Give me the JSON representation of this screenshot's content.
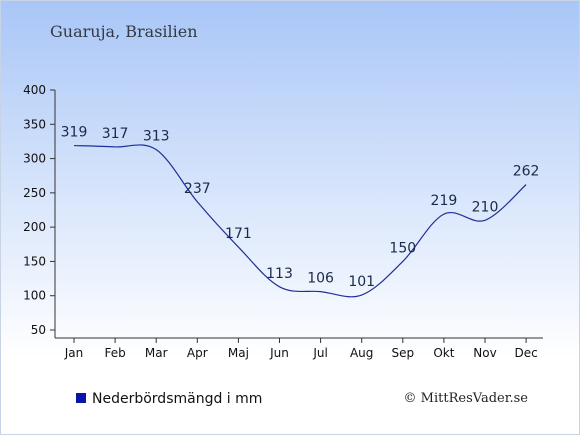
{
  "chart_data": {
    "type": "line",
    "title": "Guaruja, Brasilien",
    "categories": [
      "Jan",
      "Feb",
      "Mar",
      "Apr",
      "Maj",
      "Jun",
      "Jul",
      "Aug",
      "Sep",
      "Okt",
      "Nov",
      "Dec"
    ],
    "series": [
      {
        "name": "Nederbördsmängd i mm",
        "values": [
          319,
          317,
          313,
          237,
          171,
          113,
          106,
          101,
          150,
          219,
          210,
          262
        ]
      }
    ],
    "ylim": [
      50,
      400
    ],
    "yticks": [
      50,
      100,
      150,
      200,
      250,
      300,
      350,
      400
    ],
    "legend_position": "bottom-left",
    "grid": false
  },
  "credit": "© MittResVader.se",
  "colors": {
    "line": "#1f2f9a",
    "legend_marker": "#0a14a8",
    "bg_top": "#a9c6f7",
    "bg_bottom": "#ffffff"
  }
}
